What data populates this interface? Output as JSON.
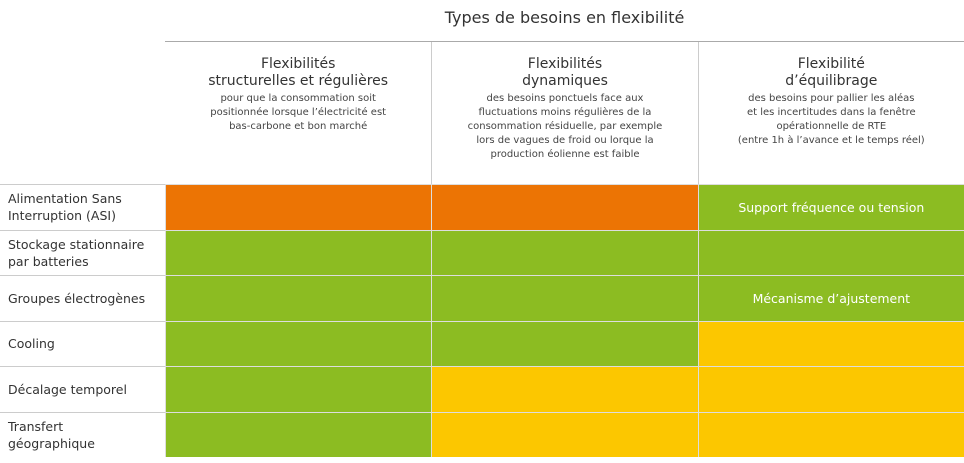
{
  "title": "Types de besoins en flexibilité",
  "columns": [
    {
      "title": [
        "Flexibilités",
        "structurelles et régulières"
      ],
      "description": [
        "pour que la consommation soit",
        "positionnée lorsque l’électricité est",
        "bas-carbone et bon marché"
      ]
    },
    {
      "title": [
        "Flexibilités",
        "dynamiques"
      ],
      "description": [
        "des besoins ponctuels face aux",
        "fluctuations moins régulières de la",
        "consommation résiduelle, par exemple",
        "lors de vagues de froid ou lorque la",
        "production éolienne est faible"
      ]
    },
    {
      "title": [
        "Flexibilité",
        "d’équilibrage"
      ],
      "description": [
        "des besoins pour pallier les aléas",
        "et les incertitudes dans la fenêtre",
        "opérationnelle de RTE",
        "(entre 1h à l’avance et le temps réel)"
      ]
    }
  ],
  "rows": [
    {
      "label": [
        "Alimentation Sans",
        "Interruption (ASI)"
      ],
      "cells": [
        {
          "color": "#ec7404"
        },
        {
          "color": "#ec7404"
        },
        {
          "color": "#8cbc22",
          "text": "Support fréquence ou tension"
        }
      ]
    },
    {
      "label": [
        "Stockage stationnaire",
        "par batteries"
      ],
      "cells": [
        {
          "color": "#8cbc22"
        },
        {
          "color": "#8cbc22"
        },
        {
          "color": "#8cbc22"
        }
      ]
    },
    {
      "label": [
        "Groupes électrogènes"
      ],
      "cells": [
        {
          "color": "#8cbc22"
        },
        {
          "color": "#8cbc22"
        },
        {
          "color": "#8cbc22",
          "text": "Mécanisme d’ajustement"
        }
      ]
    },
    {
      "label": [
        "Cooling"
      ],
      "cells": [
        {
          "color": "#8cbc22"
        },
        {
          "color": "#8cbc22"
        },
        {
          "color": "#fcc700"
        }
      ]
    },
    {
      "label": [
        "Décalage temporel"
      ],
      "cells": [
        {
          "color": "#8cbc22"
        },
        {
          "color": "#fcc700"
        },
        {
          "color": "#fcc700"
        }
      ]
    },
    {
      "label": [
        "Transfert",
        "géographique"
      ],
      "cells": [
        {
          "color": "#8cbc22"
        },
        {
          "color": "#fcc700"
        },
        {
          "color": "#fcc700"
        }
      ]
    }
  ]
}
